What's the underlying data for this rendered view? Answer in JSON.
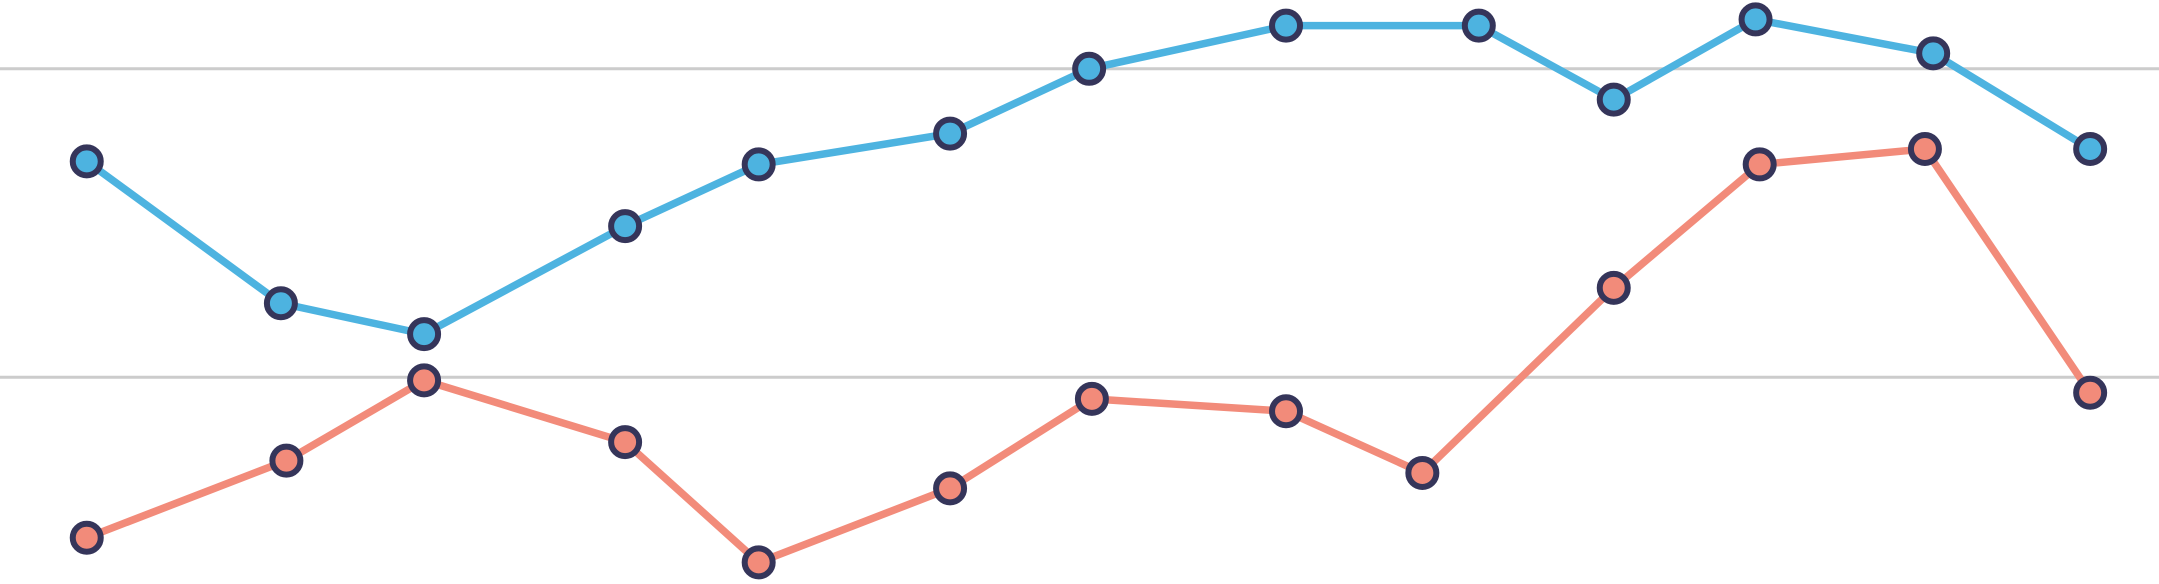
{
  "chart_data": {
    "type": "line",
    "xlim": [
      0,
      1568
    ],
    "ylim": [
      0.33,
      2.223
    ],
    "yticks": [
      1,
      2
    ],
    "grid": true,
    "marker_edge_color": "#35355a",
    "series": [
      {
        "color": "#4db3e0",
        "x": [
          63,
          204,
          308,
          454,
          551,
          690,
          791,
          934,
          1074,
          1172,
          1275,
          1404,
          1518
        ],
        "values": [
          1.7,
          1.24,
          1.14,
          1.49,
          1.69,
          1.79,
          2.0,
          2.14,
          2.14,
          1.9,
          2.16,
          2.05,
          1.74
        ]
      },
      {
        "color": "#f28b7a",
        "x": [
          63,
          208,
          308,
          454,
          551,
          690,
          793,
          934,
          1033,
          1172,
          1278,
          1398,
          1518
        ],
        "values": [
          0.48,
          0.73,
          0.99,
          0.79,
          0.4,
          0.64,
          0.93,
          0.89,
          0.69,
          1.29,
          1.69,
          1.74,
          0.95
        ]
      }
    ]
  }
}
